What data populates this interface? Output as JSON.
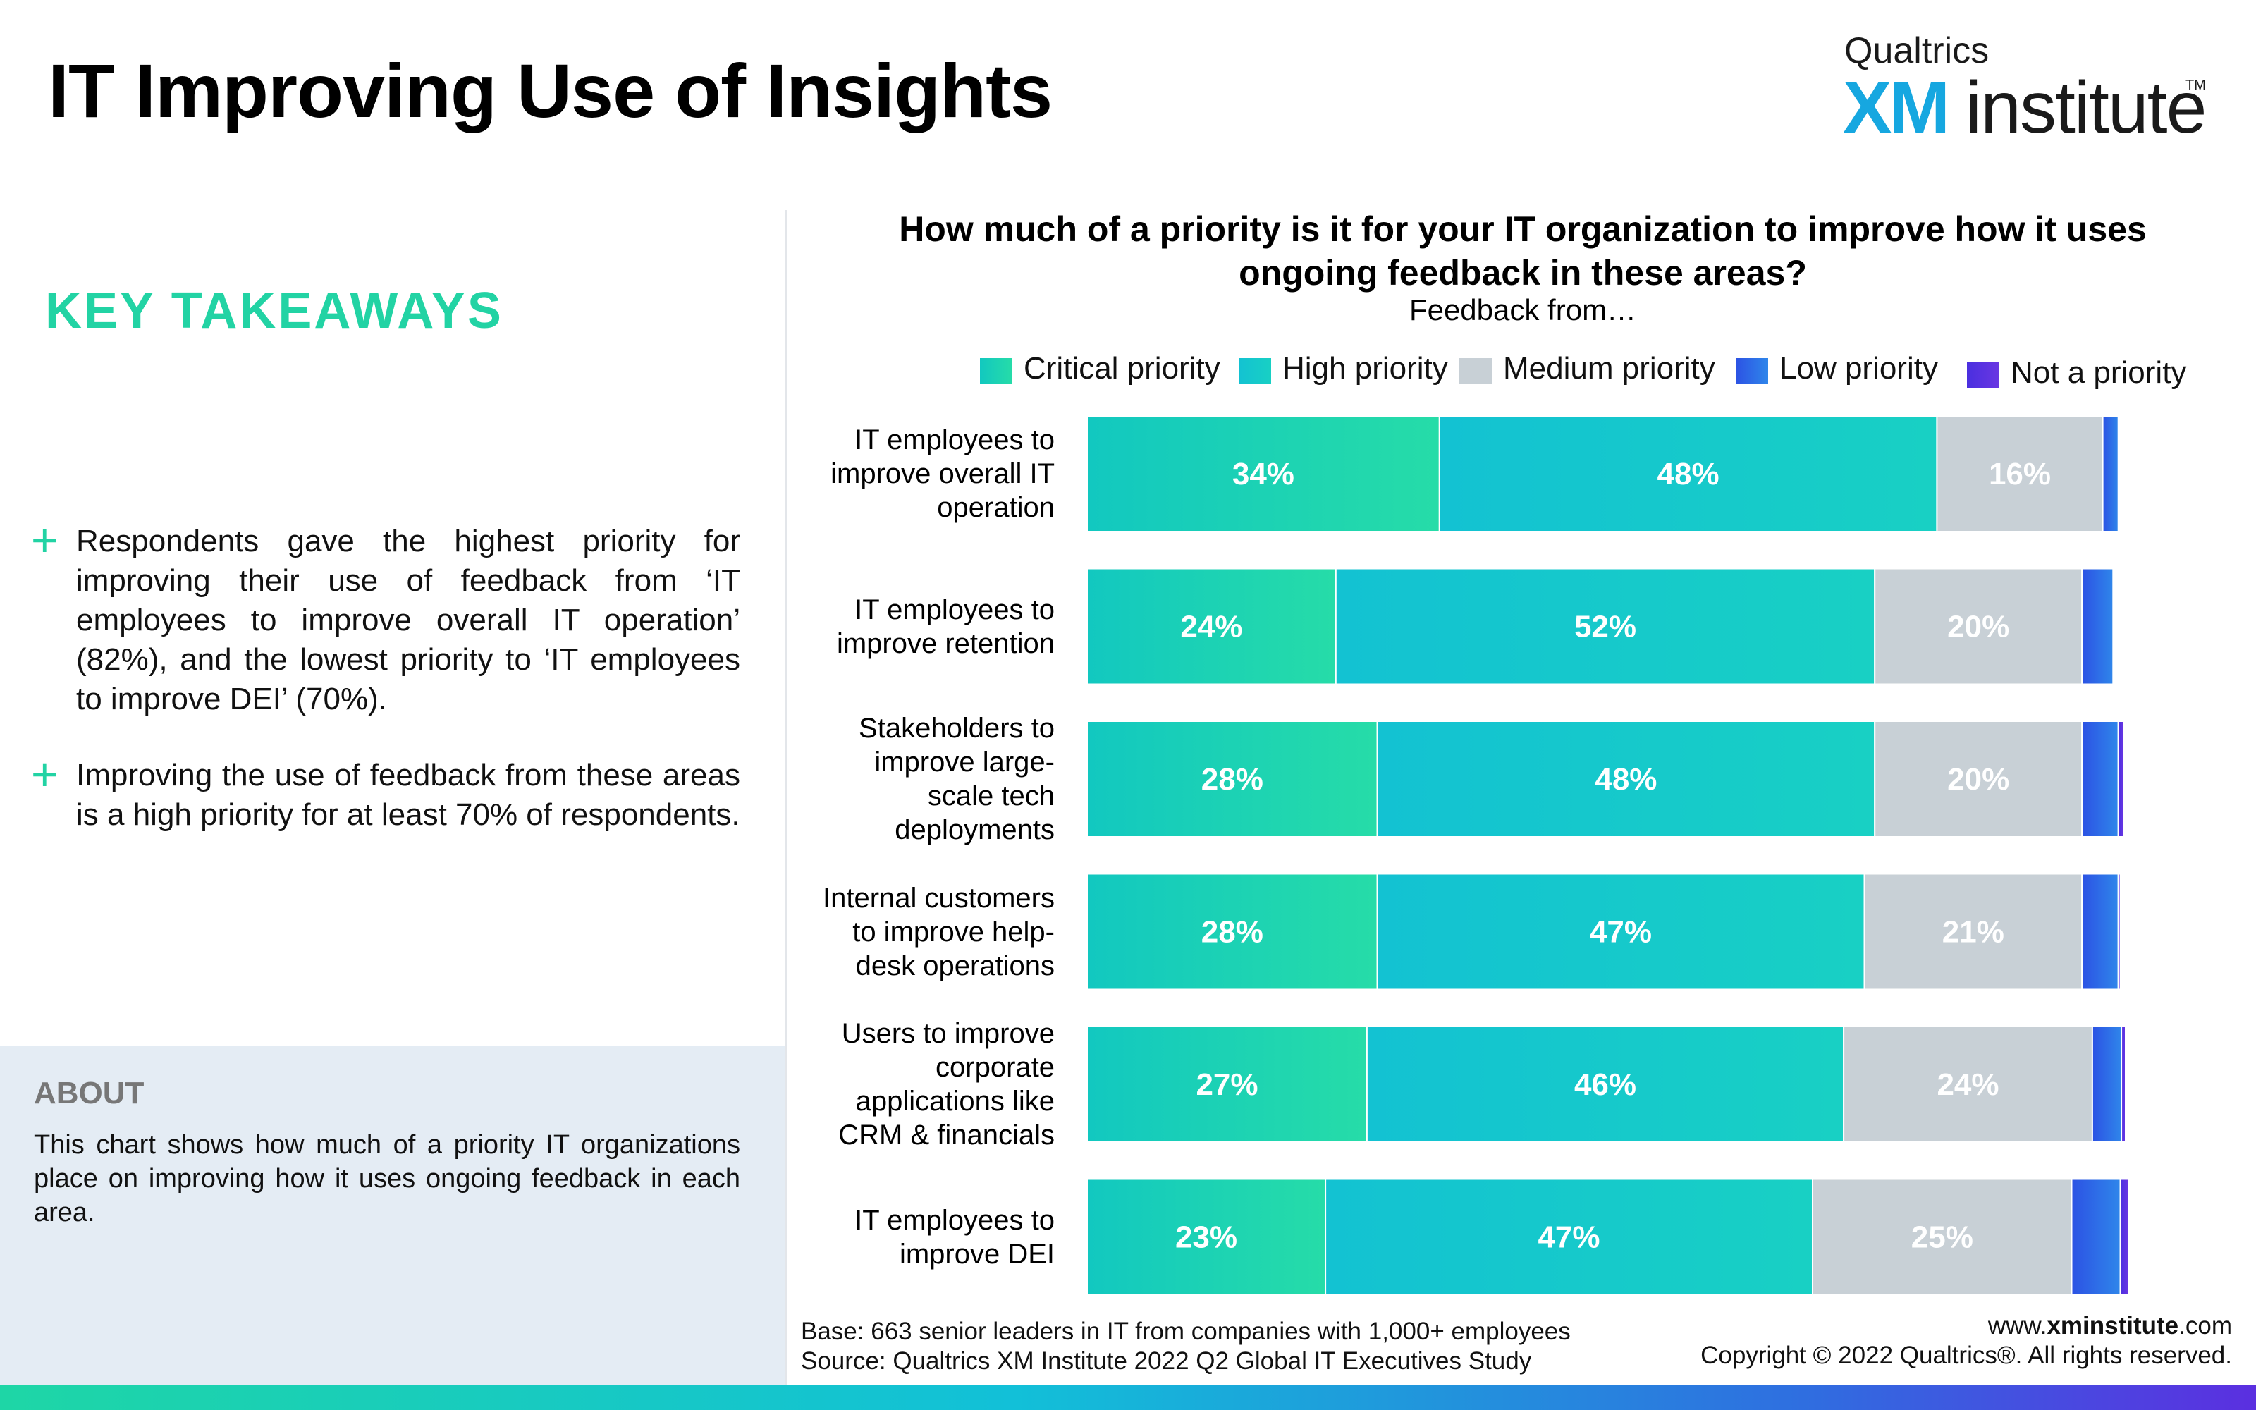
{
  "page": {
    "title": "IT Improving Use of Insights",
    "brand_top": "Qualtrics",
    "brand_xm": "XM",
    "brand_institute": "institute",
    "brand_tm": "TM"
  },
  "takeaways": {
    "heading": "KEY TAKEAWAYS",
    "items": [
      "Respondents gave the highest priority for improving their use of feedback from ‘IT employees to improve overall IT operation’ (82%), and the lowest priority to ‘IT employees to improve DEI’ (70%).",
      "Improving the use of feedback from these areas is a high priority for at least 70% of respondents."
    ],
    "bullet_symbol": "+"
  },
  "about": {
    "heading": "ABOUT",
    "text": "This chart shows how much of a priority IT organizations place on improving how it uses ongoing feedback in each area."
  },
  "chart_data": {
    "type": "bar",
    "orientation": "horizontal",
    "stacked": true,
    "title": "How much of a priority is it for your IT organization to improve how it uses ongoing feedback in these areas?",
    "subtitle": "Feedback from…",
    "legend_position": "top",
    "categories": [
      "IT employees to improve overall IT operation",
      "IT employees to improve retention",
      "Stakeholders to improve large-scale tech deployments",
      "Internal customers to improve help-desk operations",
      "Users to improve corporate applications like CRM & financials",
      "IT employees to improve DEI"
    ],
    "category_lines": [
      [
        "IT employees to",
        "improve overall IT",
        "operation"
      ],
      [
        "IT employees to",
        "improve retention"
      ],
      [
        "Stakeholders to",
        "improve large-",
        "scale tech",
        "deployments"
      ],
      [
        "Internal customers",
        "to improve help-",
        "desk operations"
      ],
      [
        "Users to improve",
        "corporate",
        "applications like",
        "CRM & financials"
      ],
      [
        "IT employees to",
        "improve DEI"
      ]
    ],
    "series": [
      {
        "name": "Critical priority",
        "color": "#22d8a8",
        "values": [
          34,
          24,
          28,
          28,
          27,
          23
        ],
        "labels": [
          "34%",
          "24%",
          "28%",
          "28%",
          "27%",
          "23%"
        ]
      },
      {
        "name": "High priority",
        "color": "#14c6cc",
        "values": [
          48,
          52,
          48,
          47,
          46,
          47
        ],
        "labels": [
          "48%",
          "52%",
          "48%",
          "47%",
          "46%",
          "47%"
        ]
      },
      {
        "name": "Medium priority",
        "color": "#c8d0d6",
        "values": [
          16,
          20,
          20,
          21,
          24,
          25
        ],
        "labels": [
          "16%",
          "20%",
          "20%",
          "21%",
          "24%",
          "25%"
        ]
      },
      {
        "name": "Low priority",
        "color": "#2f6be6",
        "values": [
          1.5,
          3,
          3.5,
          3.5,
          2.8,
          4.7
        ],
        "labels": [
          "",
          "",
          "",
          "",
          "",
          ""
        ]
      },
      {
        "name": "Not a priority",
        "color": "#5230e0",
        "values": [
          0,
          0,
          0.5,
          0.2,
          0.4,
          0.8
        ],
        "labels": [
          "",
          "",
          "",
          "",
          "",
          ""
        ]
      }
    ],
    "xlim": [
      0,
      100
    ]
  },
  "footer": {
    "base": "Base: 663 senior leaders in IT from companies with 1,000+ employees",
    "source": "Source: Qualtrics XM Institute 2022 Q2 Global IT Executives Study",
    "url_prefix": "www.",
    "url_bold": "xminstitute",
    "url_suffix": ".com",
    "copyright": "Copyright © 2022 Qualtrics®. All rights reserved."
  }
}
